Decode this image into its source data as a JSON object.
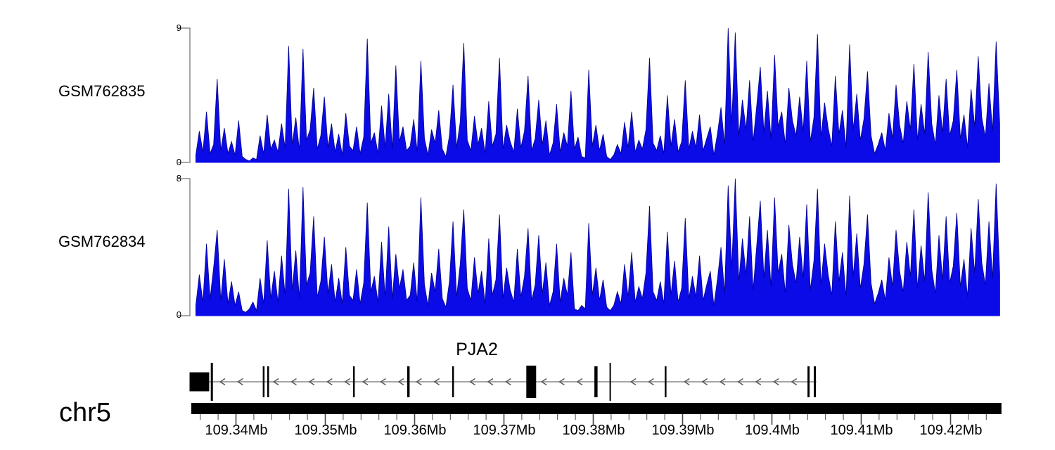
{
  "figure": {
    "kind": "genome coverage tracks with gene model",
    "chromosome_label": "chr5",
    "background_color": "#ffffff"
  },
  "tracks": [
    {
      "label": "GSM762835",
      "ymax_label": "9",
      "ymin_label": "0"
    },
    {
      "label": "GSM762834",
      "ymax_label": "8",
      "ymin_label": "0"
    }
  ],
  "gene_track": {
    "title": "PJA2"
  },
  "colors": {
    "area_fill": "#0b0be8",
    "area_stroke": "#00008b",
    "axis_bracket": "#8a8a8a",
    "gene_line": "#888888",
    "arrow": "#555555",
    "exon": "#000000",
    "chrom_bar": "#000000",
    "ruler_tick": "#444444",
    "text": "#000000"
  },
  "chart_data": [
    {
      "type": "area",
      "series_name": "GSM762835",
      "x_unit": "Mb",
      "x_start": 109.3355,
      "x_step": 0.0004,
      "ylim": [
        0,
        9
      ],
      "values": [
        0.5,
        2.1,
        0.7,
        3.4,
        0.6,
        1.2,
        5.6,
        0.8,
        2.3,
        0.6,
        1.4,
        0.5,
        2.8,
        0.4,
        0.2,
        0.1,
        0.3,
        0.2,
        1.8,
        0.6,
        3.2,
        0.9,
        1.5,
        0.7,
        2.6,
        1.0,
        7.8,
        1.2,
        3.0,
        0.8,
        7.6,
        1.5,
        2.2,
        5.0,
        0.9,
        1.8,
        4.4,
        1.0,
        2.6,
        0.7,
        1.9,
        0.5,
        3.3,
        1.1,
        0.8,
        2.4,
        0.6,
        1.7,
        8.3,
        1.3,
        2.0,
        0.6,
        3.8,
        1.0,
        4.6,
        0.9,
        6.5,
        1.4,
        2.4,
        0.8,
        1.1,
        2.9,
        0.7,
        6.8,
        1.6,
        0.5,
        2.2,
        1.3,
        3.5,
        0.9,
        0.4,
        1.8,
        5.2,
        1.0,
        2.7,
        8.0,
        1.5,
        0.8,
        3.1,
        1.2,
        2.3,
        0.6,
        4.1,
        1.1,
        1.9,
        7.0,
        0.9,
        2.5,
        1.4,
        0.7,
        3.6,
        1.0,
        2.1,
        5.8,
        0.8,
        1.6,
        4.2,
        1.2,
        2.8,
        0.5,
        1.3,
        3.9,
        0.7,
        2.0,
        1.1,
        4.8,
        0.9,
        1.7,
        0.4,
        0.3,
        6.2,
        1.1,
        2.5,
        0.8,
        1.9,
        0.4,
        0.2,
        0.5,
        1.2,
        0.6,
        2.7,
        1.0,
        3.4,
        0.7,
        1.5,
        0.9,
        2.2,
        7.0,
        1.3,
        0.8,
        1.8,
        0.6,
        4.5,
        1.1,
        2.9,
        0.7,
        1.4,
        5.5,
        0.9,
        2.1,
        1.0,
        3.2,
        0.8,
        1.6,
        2.4,
        0.5,
        1.9,
        3.7,
        1.2,
        9.0,
        2.6,
        8.7,
        1.8,
        4.2,
        2.2,
        5.5,
        1.4,
        3.8,
        6.4,
        2.0,
        4.8,
        1.6,
        7.2,
        2.4,
        3.4,
        1.2,
        5.0,
        2.8,
        1.8,
        4.4,
        2.1,
        6.8,
        1.4,
        3.0,
        8.6,
        1.7,
        4.0,
        2.3,
        1.1,
        5.8,
        1.9,
        3.5,
        1.0,
        7.9,
        2.2,
        4.6,
        1.5,
        2.9,
        6.1,
        1.8,
        0.6,
        1.2,
        2.0,
        0.8,
        3.3,
        1.6,
        5.2,
        2.5,
        1.3,
        4.1,
        2.2,
        6.6,
        1.5,
        3.9,
        1.9,
        7.4,
        2.6,
        1.2,
        4.5,
        2.0,
        5.6,
        1.8,
        2.8,
        6.2,
        1.6,
        3.2,
        1.0,
        4.9,
        2.4,
        7.1,
        3.0,
        1.7,
        5.3,
        2.1,
        8.1,
        2.6
      ]
    },
    {
      "type": "area",
      "series_name": "GSM762834",
      "x_unit": "Mb",
      "x_start": 109.3355,
      "x_step": 0.0004,
      "ylim": [
        0,
        8
      ],
      "values": [
        0.6,
        2.4,
        0.8,
        4.2,
        1.0,
        2.8,
        5.0,
        0.9,
        3.3,
        0.7,
        2.0,
        0.6,
        1.4,
        0.3,
        0.2,
        0.4,
        0.8,
        0.3,
        2.2,
        0.7,
        4.4,
        1.0,
        2.6,
        0.8,
        3.5,
        1.2,
        7.4,
        1.5,
        3.8,
        1.0,
        7.5,
        1.8,
        2.5,
        5.8,
        1.1,
        2.0,
        4.6,
        1.3,
        3.0,
        0.8,
        2.2,
        0.7,
        4.0,
        1.2,
        0.9,
        2.7,
        0.7,
        1.9,
        6.6,
        1.4,
        2.3,
        0.8,
        4.3,
        1.1,
        5.2,
        1.0,
        3.6,
        1.6,
        2.7,
        0.9,
        1.2,
        3.1,
        0.8,
        6.9,
        1.8,
        0.6,
        2.5,
        1.4,
        3.9,
        1.0,
        0.5,
        2.0,
        5.5,
        1.1,
        3.0,
        6.2,
        1.6,
        0.9,
        3.4,
        1.3,
        2.6,
        0.7,
        4.5,
        1.2,
        2.1,
        5.9,
        1.0,
        2.8,
        1.5,
        0.8,
        3.9,
        1.1,
        2.3,
        5.1,
        0.9,
        1.8,
        4.7,
        1.3,
        3.1,
        0.6,
        1.4,
        4.2,
        0.8,
        2.2,
        1.2,
        3.7,
        0.4,
        0.3,
        0.6,
        0.4,
        5.4,
        1.2,
        2.8,
        0.9,
        2.1,
        0.5,
        0.3,
        0.6,
        1.4,
        0.7,
        3.0,
        1.1,
        3.7,
        0.8,
        1.7,
        1.0,
        2.5,
        6.4,
        1.4,
        0.9,
        2.0,
        0.7,
        4.9,
        1.2,
        3.2,
        0.8,
        1.6,
        5.7,
        1.0,
        2.3,
        1.1,
        3.5,
        0.9,
        1.8,
        2.6,
        0.6,
        2.1,
        4.0,
        1.3,
        7.6,
        2.8,
        8.0,
        2.0,
        4.5,
        2.4,
        5.8,
        1.5,
        4.1,
        6.7,
        2.2,
        5.0,
        1.7,
        6.9,
        2.5,
        3.6,
        1.3,
        5.3,
        3.0,
        1.9,
        4.6,
        2.2,
        6.5,
        1.5,
        3.2,
        7.4,
        1.8,
        4.2,
        2.4,
        1.2,
        5.5,
        2.0,
        3.7,
        1.1,
        7.0,
        2.3,
        4.8,
        1.6,
        3.0,
        5.9,
        1.9,
        0.7,
        1.3,
        2.1,
        0.9,
        3.4,
        1.7,
        5.0,
        2.6,
        1.4,
        4.3,
        2.3,
        6.2,
        1.6,
        4.1,
        2.0,
        7.2,
        2.7,
        1.3,
        4.7,
        2.1,
        5.8,
        1.9,
        2.9,
        6.0,
        1.7,
        3.3,
        1.1,
        5.1,
        2.5,
        6.8,
        3.1,
        1.8,
        5.5,
        2.2,
        7.7,
        2.4
      ]
    },
    {
      "type": "gene-model",
      "gene": "PJA2",
      "chrom": "chr5",
      "strand": "-",
      "title_center_mb": 109.367,
      "line_span": [
        109.3349,
        109.405
      ],
      "arrow_start": 109.3365,
      "arrow_step": 0.002,
      "exons": [
        {
          "style": "utr",
          "start": 109.3348,
          "end": 109.337
        },
        {
          "style": "tick-tall",
          "pos": 109.3373,
          "w": 3
        },
        {
          "style": "tick",
          "pos": 109.3431,
          "w": 2.5
        },
        {
          "style": "tick",
          "pos": 109.3436,
          "w": 2.5
        },
        {
          "style": "tick",
          "pos": 109.3532,
          "w": 2.5
        },
        {
          "style": "tick",
          "pos": 109.3593,
          "w": 3.5
        },
        {
          "style": "tick",
          "pos": 109.3643,
          "w": 2.5
        },
        {
          "style": "cds",
          "start": 109.3725,
          "end": 109.3736
        },
        {
          "style": "tick",
          "pos": 109.3803,
          "w": 4.5
        },
        {
          "style": "tick-tall",
          "pos": 109.3819,
          "w": 2
        },
        {
          "style": "tick",
          "pos": 109.3881,
          "w": 2.5
        },
        {
          "style": "tick",
          "pos": 109.4041,
          "w": 3
        },
        {
          "style": "tick",
          "pos": 109.4048,
          "w": 3
        }
      ]
    },
    {
      "type": "genome-axis",
      "chrom": "chr5",
      "unit": "Mb",
      "range": [
        109.335,
        109.4257
      ],
      "minor_tick_step": 0.002,
      "minor_tick_start": 109.336,
      "minor_tick_end": 109.4245,
      "major_ticks": [
        {
          "value": 109.34,
          "label": "109.34Mb"
        },
        {
          "value": 109.35,
          "label": "109.35Mb"
        },
        {
          "value": 109.36,
          "label": "109.36Mb"
        },
        {
          "value": 109.37,
          "label": "109.37Mb"
        },
        {
          "value": 109.38,
          "label": "109.38Mb"
        },
        {
          "value": 109.39,
          "label": "109.39Mb"
        },
        {
          "value": 109.4,
          "label": "109.4Mb"
        },
        {
          "value": 109.41,
          "label": "109.41Mb"
        },
        {
          "value": 109.42,
          "label": "109.42Mb"
        }
      ]
    }
  ]
}
